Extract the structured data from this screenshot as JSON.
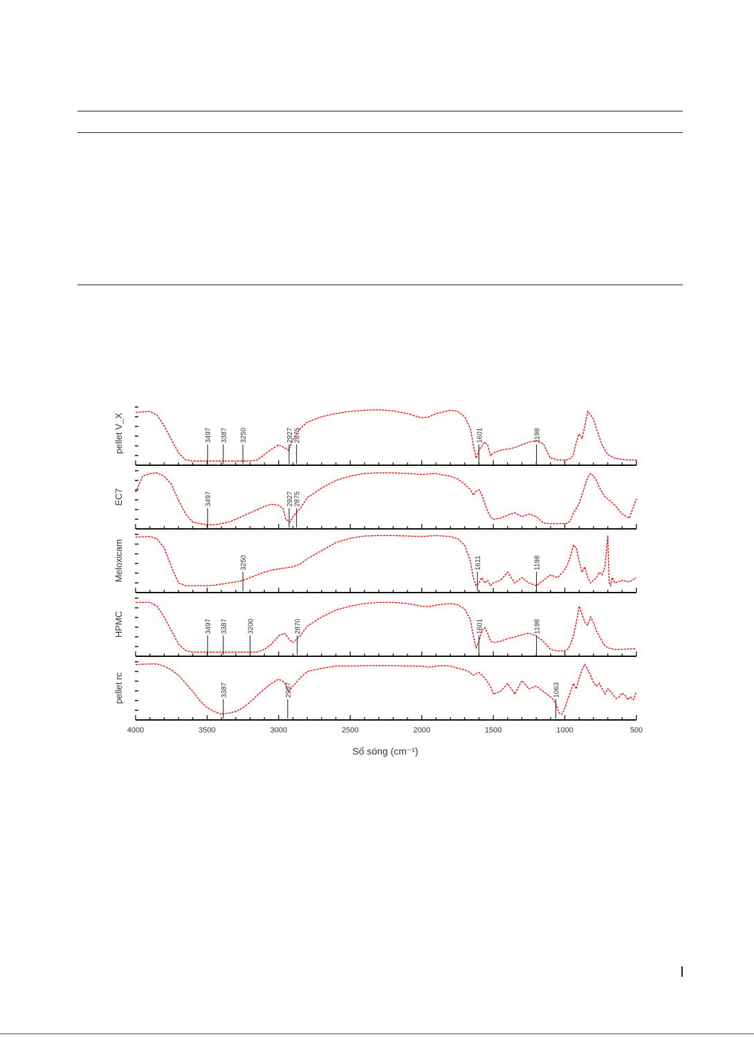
{
  "chart_data": {
    "type": "line",
    "xlabel": "Số sóng (cm⁻¹)",
    "x_ticks": [
      4000,
      3500,
      3000,
      2500,
      2000,
      1500,
      1000,
      500
    ],
    "xlim": [
      4000,
      500
    ],
    "color": "#ff0000",
    "series": [
      {
        "name": "pellet V_X",
        "x": [
          4000,
          3900,
          3850,
          3800,
          3750,
          3700,
          3650,
          3600,
          3550,
          3500,
          3450,
          3400,
          3350,
          3300,
          3250,
          3200,
          3150,
          3100,
          3050,
          3000,
          2960,
          2930,
          2900,
          2850,
          2800,
          2700,
          2600,
          2500,
          2400,
          2300,
          2200,
          2100,
          2000,
          1950,
          1900,
          1800,
          1750,
          1700,
          1660,
          1640,
          1620,
          1600,
          1560,
          1540,
          1520,
          1500,
          1450,
          1400,
          1350,
          1300,
          1250,
          1200,
          1150,
          1110,
          1100,
          1080,
          1050,
          1000,
          980,
          960,
          940,
          920,
          900,
          880,
          860,
          840,
          820,
          800,
          780,
          760,
          740,
          720,
          700,
          650,
          600,
          550,
          500
        ],
        "y": [
          0.9,
          0.92,
          0.85,
          0.65,
          0.4,
          0.15,
          0.02,
          0,
          0,
          0,
          0,
          0,
          0,
          0,
          0,
          0,
          0.02,
          0.12,
          0.22,
          0.3,
          0.25,
          0.2,
          0.4,
          0.6,
          0.72,
          0.82,
          0.88,
          0.92,
          0.94,
          0.95,
          0.93,
          0.88,
          0.8,
          0.82,
          0.88,
          0.94,
          0.92,
          0.82,
          0.6,
          0.3,
          0.05,
          0.2,
          0.35,
          0.3,
          0.1,
          0.15,
          0.2,
          0.22,
          0.25,
          0.3,
          0.35,
          0.38,
          0.32,
          0.1,
          0.05,
          0.05,
          0.02,
          0.02,
          0.03,
          0.05,
          0.12,
          0.35,
          0.5,
          0.42,
          0.65,
          0.92,
          0.85,
          0.78,
          0.6,
          0.45,
          0.3,
          0.2,
          0.12,
          0.05,
          0.03,
          0.02,
          0.02
        ],
        "annotations": [
          3497,
          3387,
          3250,
          2927,
          2875,
          1601,
          1198
        ]
      },
      {
        "name": "EC7",
        "x": [
          4000,
          3950,
          3900,
          3850,
          3800,
          3750,
          3700,
          3650,
          3600,
          3550,
          3500,
          3450,
          3400,
          3350,
          3300,
          3250,
          3200,
          3150,
          3100,
          3050,
          3000,
          2970,
          2950,
          2920,
          2900,
          2850,
          2800,
          2700,
          2600,
          2500,
          2400,
          2300,
          2200,
          2100,
          2000,
          1950,
          1900,
          1850,
          1800,
          1750,
          1700,
          1660,
          1640,
          1620,
          1600,
          1580,
          1560,
          1540,
          1520,
          1500,
          1450,
          1400,
          1350,
          1300,
          1250,
          1200,
          1150,
          1100,
          1050,
          1000,
          980,
          960,
          940,
          920,
          900,
          880,
          860,
          840,
          820,
          800,
          780,
          760,
          740,
          720,
          700,
          650,
          600,
          550,
          500
        ],
        "y": [
          0.6,
          0.9,
          0.95,
          0.96,
          0.9,
          0.75,
          0.45,
          0.2,
          0.05,
          0.02,
          0,
          0,
          0.02,
          0.05,
          0.1,
          0.16,
          0.22,
          0.28,
          0.34,
          0.38,
          0.36,
          0.3,
          0.1,
          0.05,
          0.15,
          0.3,
          0.5,
          0.68,
          0.82,
          0.9,
          0.95,
          0.96,
          0.96,
          0.95,
          0.93,
          0.94,
          0.95,
          0.92,
          0.9,
          0.85,
          0.75,
          0.65,
          0.55,
          0.62,
          0.65,
          0.55,
          0.4,
          0.25,
          0.15,
          0.1,
          0.12,
          0.18,
          0.22,
          0.15,
          0.2,
          0.15,
          0.03,
          0.02,
          0.02,
          0.02,
          0.03,
          0.08,
          0.22,
          0.3,
          0.4,
          0.55,
          0.72,
          0.88,
          0.95,
          0.9,
          0.82,
          0.7,
          0.6,
          0.52,
          0.48,
          0.36,
          0.2,
          0.12,
          0.48
        ],
        "annotations": [
          3497,
          2927,
          2875
        ]
      },
      {
        "name": "Meloxicam",
        "x": [
          4000,
          3900,
          3850,
          3800,
          3750,
          3700,
          3650,
          3600,
          3550,
          3500,
          3450,
          3400,
          3350,
          3300,
          3250,
          3200,
          3150,
          3100,
          3050,
          3000,
          2950,
          2900,
          2850,
          2800,
          2700,
          2600,
          2500,
          2400,
          2300,
          2200,
          2100,
          2000,
          1950,
          1900,
          1800,
          1750,
          1700,
          1660,
          1640,
          1620,
          1600,
          1580,
          1560,
          1540,
          1520,
          1500,
          1450,
          1400,
          1350,
          1300,
          1250,
          1200,
          1150,
          1100,
          1050,
          1000,
          980,
          960,
          940,
          920,
          900,
          880,
          860,
          840,
          820,
          800,
          780,
          760,
          740,
          720,
          700,
          690,
          680,
          670,
          650,
          600,
          550,
          500
        ],
        "y": [
          0.95,
          0.96,
          0.92,
          0.75,
          0.4,
          0.1,
          0.05,
          0.05,
          0.05,
          0.05,
          0.06,
          0.08,
          0.1,
          0.12,
          0.15,
          0.2,
          0.25,
          0.3,
          0.34,
          0.36,
          0.38,
          0.4,
          0.45,
          0.55,
          0.7,
          0.85,
          0.93,
          0.97,
          0.98,
          0.98,
          0.97,
          0.96,
          0.97,
          0.98,
          0.96,
          0.92,
          0.8,
          0.5,
          0.2,
          0.05,
          0.1,
          0.2,
          0.1,
          0.15,
          0.05,
          0.1,
          0.15,
          0.3,
          0.1,
          0.2,
          0.1,
          0.05,
          0.15,
          0.25,
          0.2,
          0.35,
          0.45,
          0.6,
          0.8,
          0.75,
          0.5,
          0.3,
          0.4,
          0.2,
          0.1,
          0.15,
          0.2,
          0.3,
          0.25,
          0.4,
          0.98,
          0.1,
          0.05,
          0.2,
          0.1,
          0.15,
          0.12,
          0.2
        ],
        "annotations": [
          3250,
          1611,
          1198
        ]
      },
      {
        "name": "HPMC",
        "x": [
          4000,
          3900,
          3850,
          3800,
          3750,
          3700,
          3650,
          3600,
          3550,
          3500,
          3450,
          3400,
          3350,
          3300,
          3250,
          3200,
          3150,
          3100,
          3050,
          3000,
          2960,
          2920,
          2900,
          2850,
          2800,
          2700,
          2600,
          2500,
          2400,
          2300,
          2200,
          2100,
          2000,
          1950,
          1900,
          1800,
          1750,
          1700,
          1660,
          1640,
          1620,
          1600,
          1580,
          1560,
          1540,
          1520,
          1500,
          1450,
          1400,
          1350,
          1300,
          1250,
          1200,
          1150,
          1100,
          1050,
          1000,
          980,
          960,
          940,
          920,
          900,
          880,
          860,
          840,
          820,
          800,
          780,
          760,
          740,
          720,
          700,
          650,
          600,
          550,
          500
        ],
        "y": [
          0.92,
          0.92,
          0.85,
          0.65,
          0.4,
          0.15,
          0.03,
          0,
          0,
          0,
          0,
          0,
          0,
          0,
          0,
          0,
          0,
          0.05,
          0.15,
          0.3,
          0.35,
          0.22,
          0.18,
          0.3,
          0.48,
          0.65,
          0.78,
          0.85,
          0.9,
          0.92,
          0.92,
          0.9,
          0.85,
          0.84,
          0.87,
          0.9,
          0.88,
          0.8,
          0.6,
          0.3,
          0.08,
          0.2,
          0.4,
          0.45,
          0.35,
          0.2,
          0.18,
          0.2,
          0.25,
          0.28,
          0.32,
          0.35,
          0.3,
          0.2,
          0.05,
          0.02,
          0.02,
          0.05,
          0.15,
          0.3,
          0.55,
          0.85,
          0.7,
          0.55,
          0.5,
          0.65,
          0.55,
          0.4,
          0.3,
          0.2,
          0.12,
          0.08,
          0.05,
          0.05,
          0.06,
          0.06
        ],
        "annotations": [
          3497,
          3387,
          3200,
          2870,
          1601,
          1198
        ]
      },
      {
        "name": "pellet rc",
        "x": [
          4000,
          3900,
          3850,
          3800,
          3750,
          3700,
          3650,
          3600,
          3550,
          3500,
          3450,
          3420,
          3400,
          3350,
          3300,
          3250,
          3200,
          3150,
          3100,
          3050,
          3000,
          2960,
          2930,
          2900,
          2850,
          2800,
          2700,
          2600,
          2500,
          2400,
          2300,
          2200,
          2100,
          2000,
          1950,
          1900,
          1850,
          1800,
          1750,
          1700,
          1660,
          1640,
          1620,
          1600,
          1560,
          1520,
          1500,
          1450,
          1400,
          1350,
          1300,
          1250,
          1200,
          1150,
          1100,
          1080,
          1060,
          1040,
          1020,
          1000,
          980,
          960,
          940,
          920,
          900,
          880,
          860,
          840,
          820,
          800,
          780,
          760,
          740,
          720,
          700,
          680,
          660,
          640,
          620,
          600,
          580,
          560,
          540,
          520,
          500
        ],
        "y": [
          0.95,
          0.96,
          0.96,
          0.92,
          0.85,
          0.75,
          0.6,
          0.45,
          0.28,
          0.15,
          0.08,
          0.05,
          0.03,
          0.05,
          0.08,
          0.15,
          0.25,
          0.38,
          0.5,
          0.6,
          0.68,
          0.62,
          0.45,
          0.55,
          0.7,
          0.82,
          0.88,
          0.92,
          0.92,
          0.93,
          0.93,
          0.93,
          0.92,
          0.92,
          0.9,
          0.92,
          0.93,
          0.92,
          0.88,
          0.85,
          0.8,
          0.75,
          0.78,
          0.8,
          0.7,
          0.55,
          0.4,
          0.45,
          0.6,
          0.4,
          0.65,
          0.5,
          0.55,
          0.45,
          0.35,
          0.3,
          0.2,
          0.05,
          0.03,
          0.15,
          0.3,
          0.45,
          0.6,
          0.5,
          0.7,
          0.85,
          0.95,
          0.85,
          0.75,
          0.62,
          0.55,
          0.6,
          0.5,
          0.4,
          0.5,
          0.45,
          0.38,
          0.32,
          0.35,
          0.42,
          0.38,
          0.3,
          0.35,
          0.3,
          0.45
        ],
        "annotations": [
          3387,
          2937,
          1063
        ]
      }
    ]
  }
}
